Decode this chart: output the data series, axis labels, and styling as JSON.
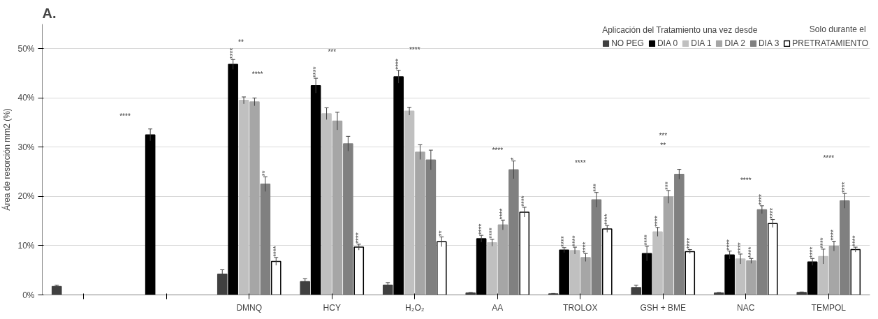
{
  "chart_data": {
    "type": "bar",
    "title": "A.",
    "ylabel": "Área de resorción mm2 (%)",
    "legend_title": "Aplicación del Tratamiento una vez desde",
    "categories": [
      null,
      null,
      "DMNQ",
      "HCY",
      "H₂O₂",
      "AA",
      "TROLOX",
      "GSH + BME",
      "NAC",
      "TEMPOL"
    ],
    "series": [
      {
        "name": "NO PEG",
        "color": "#404040",
        "values": [
          1.7,
          null,
          4.2,
          2.7,
          2.0,
          0.4,
          0.2,
          1.5,
          0.4,
          0.5
        ],
        "errors": [
          0.3,
          null,
          0.9,
          0.6,
          0.5,
          0.1,
          0.1,
          0.5,
          0.1,
          0.1
        ]
      },
      {
        "name": "DIA 0",
        "color": "#000000",
        "values": [
          null,
          32.5,
          46.8,
          42.5,
          44.3,
          11.4,
          9.1,
          8.4,
          8.1,
          6.7
        ],
        "errors": [
          null,
          1.2,
          1.0,
          1.5,
          1.3,
          0.7,
          0.5,
          1.5,
          0.8,
          0.7
        ],
        "value_labels": [
          null,
          null,
          "****",
          "****",
          "****",
          "****",
          "****",
          "****",
          "****",
          "****"
        ]
      },
      {
        "name": "DIA 1",
        "color": "#c0c0c0",
        "values": [
          null,
          null,
          39.5,
          36.8,
          37.3,
          10.6,
          9.0,
          12.8,
          7.3,
          7.8
        ],
        "errors": [
          null,
          null,
          0.7,
          1.2,
          0.8,
          0.7,
          0.7,
          0.9,
          1.0,
          1.5
        ],
        "value_labels": [
          null,
          null,
          null,
          null,
          null,
          "****",
          "****",
          "****",
          "****",
          "****"
        ]
      },
      {
        "name": "DIA 2",
        "color": "#a6a6a6",
        "values": [
          null,
          null,
          39.2,
          35.3,
          29.0,
          14.2,
          7.6,
          19.9,
          6.9,
          9.9
        ],
        "errors": [
          null,
          null,
          0.8,
          1.8,
          1.5,
          1.0,
          0.8,
          1.3,
          0.5,
          1.0
        ],
        "value_labels": [
          null,
          null,
          null,
          null,
          null,
          "****",
          "****",
          "***",
          "****",
          "****"
        ]
      },
      {
        "name": "DIA 3",
        "color": "#808080",
        "values": [
          null,
          null,
          22.5,
          30.7,
          27.4,
          25.4,
          19.3,
          24.5,
          17.3,
          19.1
        ],
        "errors": [
          null,
          null,
          1.5,
          1.5,
          2.0,
          1.8,
          1.5,
          1.0,
          0.8,
          1.5
        ],
        "value_labels": [
          null,
          null,
          "**",
          null,
          null,
          "*",
          "***",
          null,
          "****",
          "****"
        ]
      },
      {
        "name": "PRETRATAMIENTO",
        "color": "#ffffff",
        "values": [
          null,
          null,
          6.8,
          9.7,
          10.8,
          16.8,
          13.4,
          8.8,
          14.5,
          9.2
        ],
        "errors": [
          null,
          null,
          0.8,
          0.6,
          1.0,
          1.0,
          0.7,
          0.4,
          0.8,
          0.5
        ],
        "value_labels": [
          null,
          null,
          "****",
          "****",
          "**",
          "****",
          "****",
          "****",
          "****",
          "****"
        ]
      }
    ],
    "ylim": [
      0,
      55
    ],
    "yticks": [
      {
        "value": 0,
        "label": "0%"
      },
      {
        "value": 10,
        "label": "10%"
      },
      {
        "value": 20,
        "label": "20%"
      },
      {
        "value": 30,
        "label": "30%"
      },
      {
        "value": 40,
        "label": "40%"
      },
      {
        "value": 50,
        "label": "50%"
      }
    ],
    "grid": "y",
    "legend": "top right",
    "annotations": [
      "****",
      "**",
      "****",
      "***",
      "****",
      "****",
      "****",
      "***",
      "**",
      "****",
      "****",
      "Solo durante el"
    ]
  }
}
